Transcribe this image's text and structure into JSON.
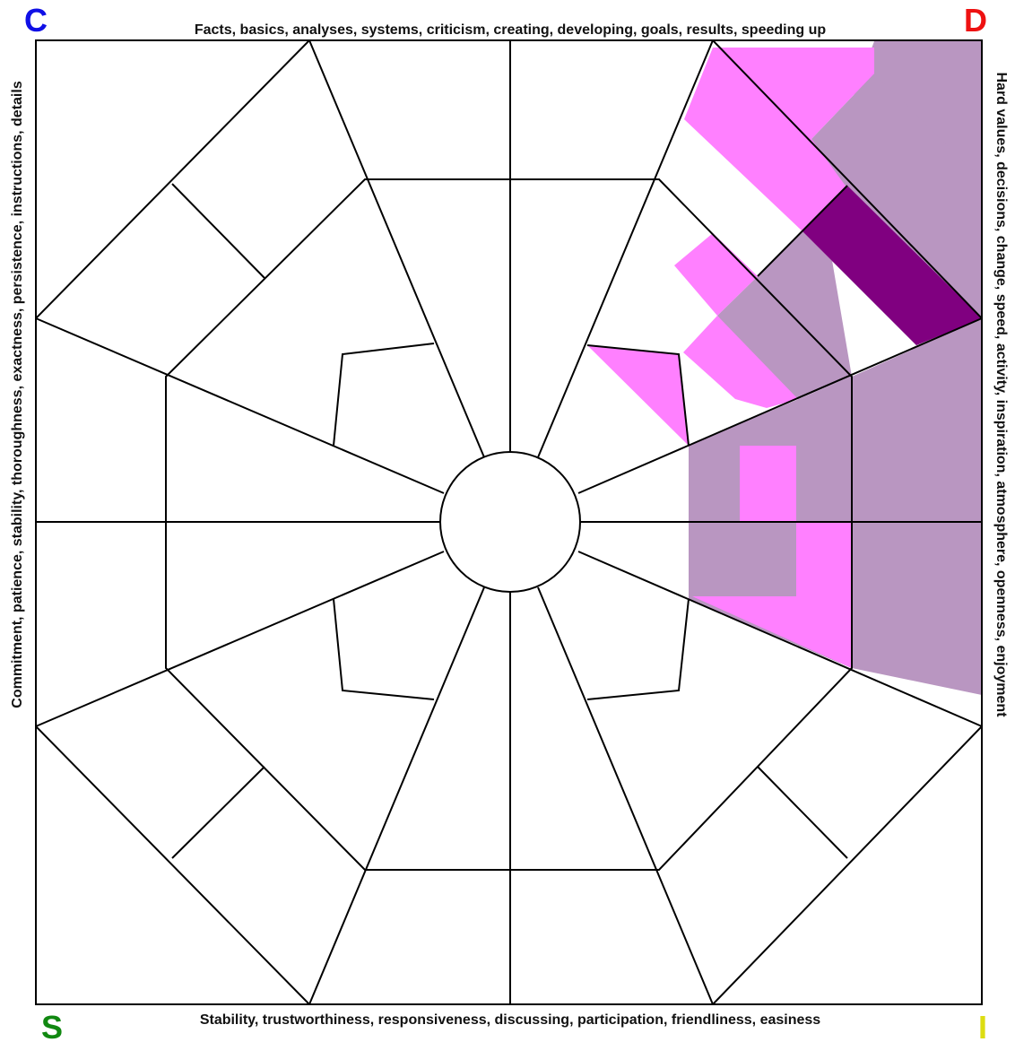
{
  "corners": {
    "C": {
      "letter": "C",
      "color": "#1010e6"
    },
    "D": {
      "letter": "D",
      "color": "#ee1111"
    },
    "S": {
      "letter": "S",
      "color": "#118811"
    },
    "I": {
      "letter": "I",
      "color": "#dddd11"
    }
  },
  "labels": {
    "top": "Facts, basics, analyses, systems, criticism, creating, developing, goals, results, speeding up",
    "bottom": "Stability, trustworthiness, responsiveness, discussing, participation, friendliness, easiness",
    "left": "Commitment, patience, stability, thoroughness, exactness, persistence, instructions, details",
    "right": "Hard values, decisions, change, speed, activity, inspiration, atmosphere, openness, enjoyment"
  },
  "fills": {
    "pink": "#ff80ff",
    "mauve": "#b996c1",
    "purple": "#800080",
    "frame": "#000000"
  }
}
